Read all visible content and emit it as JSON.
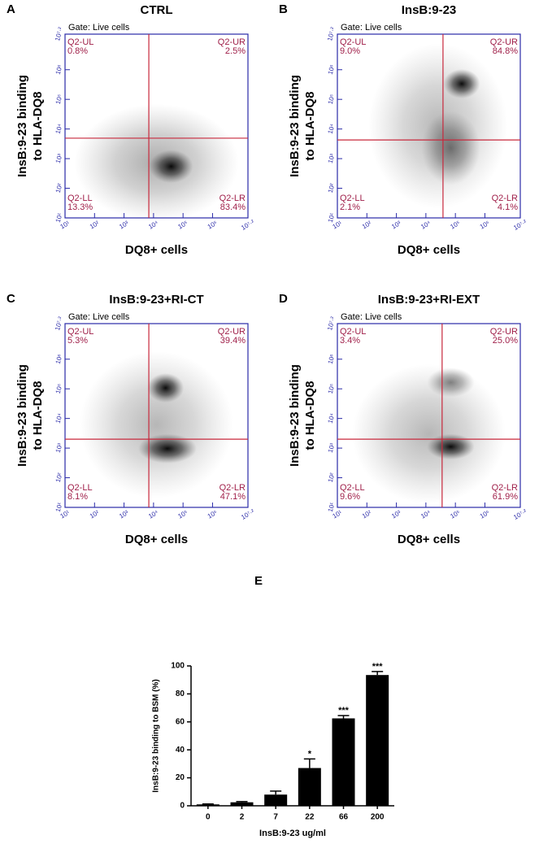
{
  "chart_data": [
    {
      "type": "flow",
      "panel": "A",
      "title": "CTRL",
      "subtitle": "Gate: Live cells",
      "xlabel": "DQ8+ cells",
      "ylabel": [
        "InsB:9-23 binding",
        "to HLA-DQ8"
      ],
      "categories": [
        "Q2-UL",
        "Q2-UR",
        "Q2-LL",
        "Q2-LR"
      ],
      "values": [
        0.8,
        2.5,
        13.3,
        83.4
      ],
      "value_labels": [
        "0.8%",
        "2.5%",
        "13.3%",
        "83.4%"
      ],
      "gate": {
        "x": 3.84,
        "y": 3.69
      },
      "xlim": [
        1,
        7.2
      ],
      "ylim": [
        1,
        7.2
      ],
      "xticks": [
        {
          "value": 1,
          "label": "10¹"
        },
        {
          "value": 2,
          "label": "10²"
        },
        {
          "value": 3,
          "label": "10³"
        },
        {
          "value": 4,
          "label": "10⁴"
        },
        {
          "value": 5,
          "label": "10⁵"
        },
        {
          "value": 6,
          "label": "10⁶"
        },
        {
          "value": 7.2,
          "label": "10⁷·²"
        }
      ],
      "yticks": [
        {
          "value": 1,
          "label": "10¹"
        },
        {
          "value": 2,
          "label": "10²"
        },
        {
          "value": 3,
          "label": "10³"
        },
        {
          "value": 4,
          "label": "10⁴"
        },
        {
          "value": 5,
          "label": "10⁵"
        },
        {
          "value": 6,
          "label": "10⁶"
        },
        {
          "value": 7.2,
          "label": "10⁷·²"
        }
      ]
    },
    {
      "type": "flow",
      "panel": "B",
      "title": "InsB:9-23",
      "subtitle": "Gate: Live cells",
      "xlabel": "DQ8+ cells",
      "ylabel": [
        "InsB:9-23 binding",
        "to HLA-DQ8"
      ],
      "categories": [
        "Q2-UL",
        "Q2-UR",
        "Q2-LL",
        "Q2-LR"
      ],
      "values": [
        9.0,
        84.8,
        2.1,
        4.1
      ],
      "value_labels": [
        "9.0%",
        "84.8%",
        "2.1%",
        "4.1%"
      ],
      "gate": {
        "x": 4.58,
        "y": 3.63
      },
      "xlim": [
        1,
        7.2
      ],
      "ylim": [
        1,
        7.2
      ],
      "xticks": [
        {
          "value": 1,
          "label": "10¹"
        },
        {
          "value": 2,
          "label": "10²"
        },
        {
          "value": 3,
          "label": "10³"
        },
        {
          "value": 4,
          "label": "10⁴"
        },
        {
          "value": 5,
          "label": "10⁵"
        },
        {
          "value": 6,
          "label": "10⁶"
        },
        {
          "value": 7.2,
          "label": "10⁷·²"
        }
      ],
      "yticks": [
        {
          "value": 1,
          "label": "10¹"
        },
        {
          "value": 2,
          "label": "10²"
        },
        {
          "value": 3,
          "label": "10³"
        },
        {
          "value": 4,
          "label": "10⁴"
        },
        {
          "value": 5,
          "label": "10⁵"
        },
        {
          "value": 6,
          "label": "10⁶"
        },
        {
          "value": 7.2,
          "label": "10⁷·²"
        }
      ]
    },
    {
      "type": "flow",
      "panel": "C",
      "title": "InsB:9-23+RI-CT",
      "subtitle": "Gate: Live cells",
      "xlabel": "DQ8+ cells",
      "ylabel": [
        "InsB:9-23 binding",
        "to HLA-DQ8"
      ],
      "categories": [
        "Q2-UL",
        "Q2-UR",
        "Q2-LL",
        "Q2-LR"
      ],
      "values": [
        5.3,
        39.4,
        8.1,
        47.1
      ],
      "value_labels": [
        "5.3%",
        "39.4%",
        "8.1%",
        "47.1%"
      ],
      "gate": {
        "x": 3.84,
        "y": 3.3
      },
      "xlim": [
        1,
        7.2
      ],
      "ylim": [
        1,
        7.2
      ],
      "xticks": [
        {
          "value": 1,
          "label": "10¹"
        },
        {
          "value": 2,
          "label": "10²"
        },
        {
          "value": 3,
          "label": "10³"
        },
        {
          "value": 4,
          "label": "10⁴"
        },
        {
          "value": 5,
          "label": "10⁵"
        },
        {
          "value": 6,
          "label": "10⁶"
        },
        {
          "value": 7.2,
          "label": "10⁷·²"
        }
      ],
      "yticks": [
        {
          "value": 1,
          "label": "10¹"
        },
        {
          "value": 2,
          "label": "10²"
        },
        {
          "value": 3,
          "label": "10³"
        },
        {
          "value": 4,
          "label": "10⁴"
        },
        {
          "value": 5,
          "label": "10⁵"
        },
        {
          "value": 6,
          "label": "10⁶"
        },
        {
          "value": 7.2,
          "label": "10⁷·²"
        }
      ]
    },
    {
      "type": "flow",
      "panel": "D",
      "title": "InsB:9-23+RI-EXT",
      "subtitle": "Gate: Live cells",
      "xlabel": "DQ8+ cells",
      "ylabel": [
        "InsB:9-23 binding",
        "to HLA-DQ8"
      ],
      "categories": [
        "Q2-UL",
        "Q2-UR",
        "Q2-LL",
        "Q2-LR"
      ],
      "values": [
        3.4,
        25.0,
        9.6,
        61.9
      ],
      "value_labels": [
        "3.4%",
        "25.0%",
        "9.6%",
        "61.9%"
      ],
      "gate": {
        "x": 4.55,
        "y": 3.3
      },
      "xlim": [
        1,
        7.2
      ],
      "ylim": [
        1,
        7.2
      ],
      "xticks": [
        {
          "value": 1,
          "label": "10¹"
        },
        {
          "value": 2,
          "label": "10²"
        },
        {
          "value": 3,
          "label": "10³"
        },
        {
          "value": 4,
          "label": "10⁴"
        },
        {
          "value": 5,
          "label": "10⁵"
        },
        {
          "value": 6,
          "label": "10⁶"
        },
        {
          "value": 7.2,
          "label": "10⁷·²"
        }
      ],
      "yticks": [
        {
          "value": 1,
          "label": "10¹"
        },
        {
          "value": 2,
          "label": "10²"
        },
        {
          "value": 3,
          "label": "10³"
        },
        {
          "value": 4,
          "label": "10⁴"
        },
        {
          "value": 5,
          "label": "10⁵"
        },
        {
          "value": 6,
          "label": "10⁶"
        },
        {
          "value": 7.2,
          "label": "10⁷·²"
        }
      ]
    },
    {
      "type": "bar",
      "panel": "E",
      "xlabel": "InsB:9-23 ug/ml",
      "ylabel": "InsB:9-23 binding to BSM (%)",
      "categories": [
        "0",
        "2",
        "7",
        "22",
        "66",
        "200"
      ],
      "values": [
        1,
        2.5,
        8,
        27,
        62.5,
        93.5
      ],
      "errors": [
        0.3,
        0.5,
        2.5,
        6.5,
        2,
        2.5
      ],
      "significance": [
        null,
        null,
        null,
        "*",
        "***",
        "***"
      ],
      "color": "#000000",
      "ylim": [
        0,
        100
      ],
      "yticks": [
        0,
        20,
        40,
        60,
        80,
        100
      ]
    }
  ]
}
